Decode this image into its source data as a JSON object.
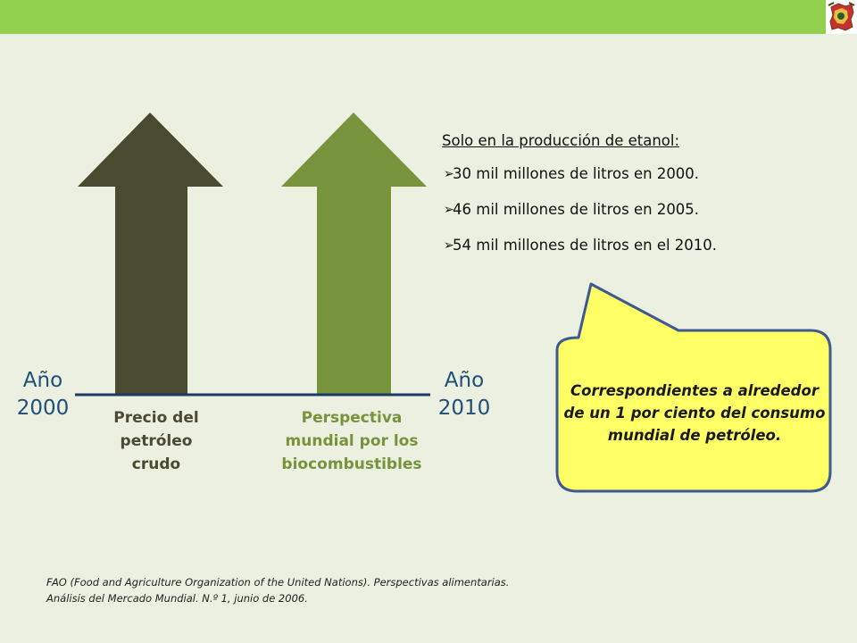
{
  "header": {
    "accent_color": "#92D050",
    "logo_icon": "coat-of-arms-logo"
  },
  "chart": {
    "start_year_label": "Año 2000",
    "end_year_label": "Año 2010",
    "arrows": [
      {
        "label": "Precio del petróleo crudo",
        "color": "#4A4A31"
      },
      {
        "label": "Perspectiva mundial por los biocombustibles",
        "color": "#77933C"
      }
    ]
  },
  "facts": {
    "heading": "Solo en la producción de etanol:",
    "bullet_icon": "arrow-bullet-icon",
    "items": [
      "30 mil millones de litros en 2000.",
      "46 mil millones de litros en 2005.",
      "54 mil millones de litros en el 2010."
    ]
  },
  "callout": {
    "text": "Correspondientes a alrededor de un 1 por ciento del consumo mundial de petróleo.",
    "fill_color": "#FFFF66",
    "border_color": "#3F5A8F"
  },
  "source": {
    "line1": "FAO (Food and Agriculture Organization of the United Nations). Perspectivas alimentarias.",
    "line2": "Análisis del Mercado Mundial. N.º 1, junio de 2006."
  }
}
